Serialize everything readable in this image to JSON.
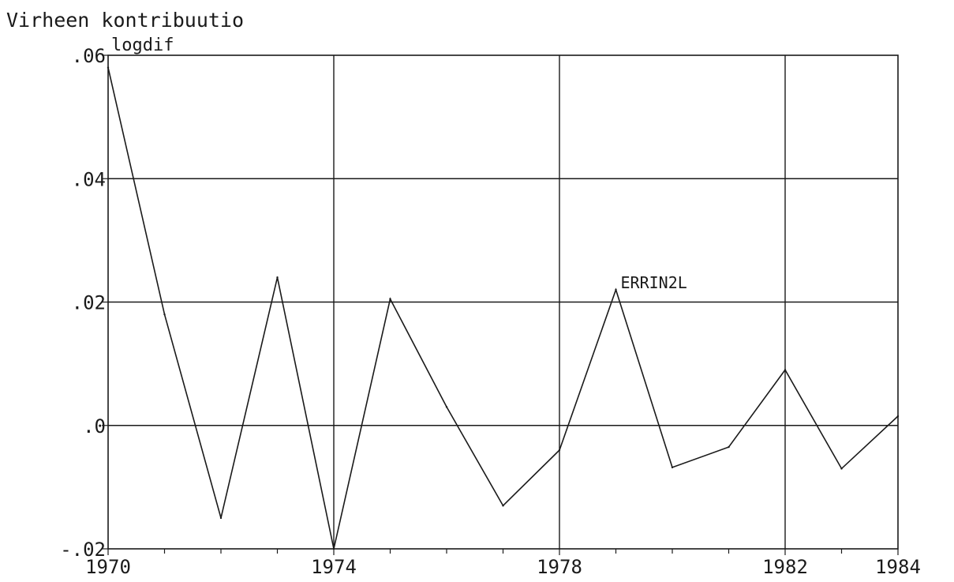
{
  "chart_data": {
    "type": "line",
    "title": "Virheen kontribuutio",
    "ylabel": "logdif",
    "xlabel": "",
    "xlim": [
      1970,
      1984
    ],
    "ylim": [
      -0.02,
      0.06
    ],
    "x_ticks": [
      1970,
      1974,
      1978,
      1982,
      1984
    ],
    "x_tick_labels": [
      "1970",
      "1974",
      "1978",
      "1982",
      "1984"
    ],
    "y_ticks": [
      -0.02,
      0.0,
      0.02,
      0.04,
      0.06
    ],
    "y_tick_labels": [
      "-.02",
      ".0",
      ".02",
      ".04",
      ".06"
    ],
    "grid": true,
    "series": [
      {
        "name": "ERRIN2L",
        "x": [
          1970,
          1971,
          1972,
          1973,
          1974,
          1975,
          1976,
          1977,
          1978,
          1979,
          1980,
          1981,
          1982,
          1983,
          1984
        ],
        "y": [
          0.058,
          0.018,
          -0.015,
          0.024,
          -0.02,
          0.0205,
          0.003,
          -0.013,
          -0.004,
          0.022,
          -0.0068,
          -0.0035,
          0.009,
          -0.007,
          0.0015
        ]
      }
    ]
  }
}
